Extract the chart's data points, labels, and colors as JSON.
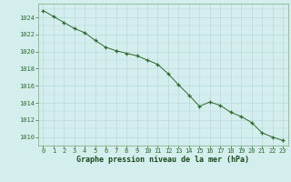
{
  "hours": [
    0,
    1,
    2,
    3,
    4,
    5,
    6,
    7,
    8,
    9,
    10,
    11,
    12,
    13,
    14,
    15,
    16,
    17,
    18,
    19,
    20,
    21,
    22,
    23
  ],
  "pressure": [
    1024.8,
    1024.1,
    1023.4,
    1022.7,
    1022.2,
    1021.3,
    1020.5,
    1020.1,
    1019.8,
    1019.5,
    1019.0,
    1018.5,
    1017.4,
    1016.1,
    1014.9,
    1013.6,
    1014.1,
    1013.7,
    1012.9,
    1012.4,
    1011.7,
    1010.5,
    1010.0,
    1009.6
  ],
  "line_color": "#2d6a2d",
  "marker_color": "#2d6a2d",
  "bg_color": "#d4eeee",
  "grid_color_major": "#b8dada",
  "grid_color_minor": "#ccecec",
  "xlabel": "Graphe pression niveau de la mer (hPa)",
  "xlabel_color": "#1a4a1a",
  "tick_color": "#2d6a2d",
  "spine_color": "#7aaa7a",
  "xlim": [
    -0.5,
    23.5
  ],
  "ylim": [
    1009.0,
    1025.6
  ],
  "yticks": [
    1010,
    1012,
    1014,
    1016,
    1018,
    1020,
    1022,
    1024
  ],
  "xticks": [
    0,
    1,
    2,
    3,
    4,
    5,
    6,
    7,
    8,
    9,
    10,
    11,
    12,
    13,
    14,
    15,
    16,
    17,
    18,
    19,
    20,
    21,
    22,
    23
  ],
  "tick_fontsize": 5.0,
  "xlabel_fontsize": 6.0
}
